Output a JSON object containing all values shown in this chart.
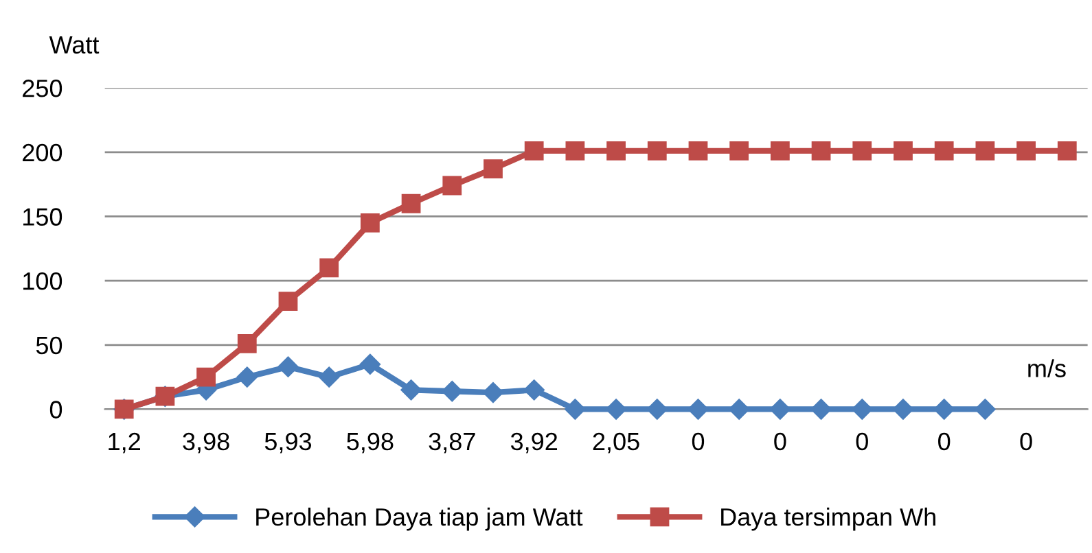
{
  "chart_data": {
    "type": "line",
    "ylabel": "Watt",
    "xlabel": "m/s",
    "categories": [
      "1,2",
      null,
      "3,98",
      null,
      "5,93",
      null,
      "5,98",
      null,
      "3,87",
      null,
      "3,92",
      null,
      "2,05",
      null,
      "0",
      null,
      "0",
      null,
      "0",
      null,
      "0",
      null,
      "0",
      null
    ],
    "series": [
      {
        "name": "Perolehan Daya tiap jam Watt",
        "color": "#4a7ebb",
        "marker": "diamond",
        "values": [
          0,
          10,
          15,
          25,
          33,
          25,
          35,
          15,
          14,
          13,
          15,
          0,
          0,
          0,
          0,
          0,
          0,
          0,
          0,
          0,
          0,
          0,
          null,
          null
        ]
      },
      {
        "name": "Daya tersimpan Wh",
        "color": "#be4b48",
        "marker": "square",
        "values": [
          0,
          10,
          25,
          51,
          84,
          110,
          145,
          160,
          174,
          187,
          201,
          201,
          201,
          201,
          201,
          201,
          201,
          201,
          201,
          201,
          201,
          201,
          201,
          201
        ]
      }
    ],
    "ylim": [
      0,
      250
    ],
    "yticks": [
      0,
      50,
      100,
      150,
      200,
      250
    ],
    "grid": "y",
    "legend": "bottom"
  }
}
